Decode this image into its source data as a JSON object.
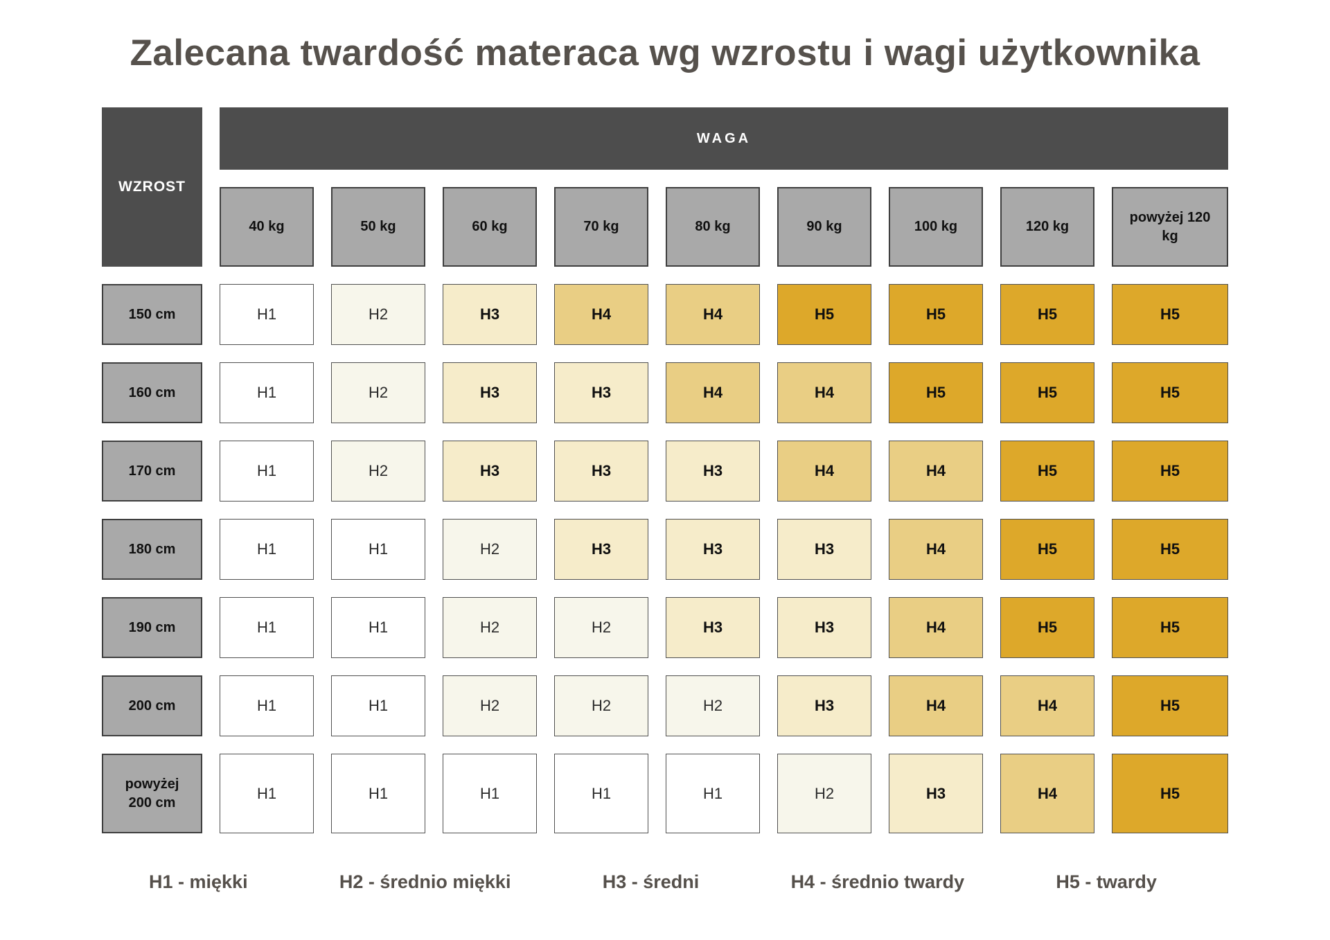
{
  "title": "Zalecana twardość materaca wg wzrostu i wagi użytkownika",
  "table": {
    "corner_label": "WZROST",
    "weight_header": "WAGA",
    "weight_columns": [
      "40 kg",
      "50 kg",
      "60 kg",
      "70 kg",
      "80 kg",
      "90 kg",
      "100 kg",
      "120 kg",
      "powyżej 120 kg"
    ],
    "rows": [
      {
        "height": "150 cm",
        "cells": [
          "H1",
          "H2",
          "H3",
          "H4",
          "H4",
          "H5",
          "H5",
          "H5",
          "H5"
        ]
      },
      {
        "height": "160 cm",
        "cells": [
          "H1",
          "H2",
          "H3",
          "H3",
          "H4",
          "H4",
          "H5",
          "H5",
          "H5"
        ]
      },
      {
        "height": "170 cm",
        "cells": [
          "H1",
          "H2",
          "H3",
          "H3",
          "H3",
          "H4",
          "H4",
          "H5",
          "H5"
        ]
      },
      {
        "height": "180 cm",
        "cells": [
          "H1",
          "H1",
          "H2",
          "H3",
          "H3",
          "H3",
          "H4",
          "H5",
          "H5"
        ]
      },
      {
        "height": "190 cm",
        "cells": [
          "H1",
          "H1",
          "H2",
          "H2",
          "H3",
          "H3",
          "H4",
          "H5",
          "H5"
        ]
      },
      {
        "height": "200 cm",
        "cells": [
          "H1",
          "H1",
          "H2",
          "H2",
          "H2",
          "H3",
          "H4",
          "H4",
          "H5"
        ]
      },
      {
        "height": "powyżej 200 cm",
        "cells": [
          "H1",
          "H1",
          "H1",
          "H1",
          "H1",
          "H2",
          "H3",
          "H4",
          "H5"
        ]
      }
    ],
    "level_styles": {
      "H1": {
        "bg": "#ffffff",
        "bold": false,
        "text": "#2b2b2b"
      },
      "H2": {
        "bg": "#f7f6eb",
        "bold": false,
        "text": "#2b2b2b"
      },
      "H3": {
        "bg": "#f6ecca",
        "bold": true,
        "text": "#0f0f0f"
      },
      "H4": {
        "bg": "#e9ce84",
        "bold": true,
        "text": "#0f0f0f"
      },
      "H5": {
        "bg": "#dda82a",
        "bold": true,
        "text": "#0f0f0f"
      }
    },
    "colors": {
      "header_dark": "#4d4d4d",
      "header_gray": "#a9a9a9",
      "border_dark": "#3e3e3e",
      "title_text": "#56514c"
    }
  },
  "legend": {
    "items": [
      "H1 - miękki",
      "H2 - średnio miękki",
      "H3 - średni",
      "H4 - średnio twardy",
      "H5 - twardy"
    ]
  },
  "chart_data": {
    "type": "heatmap",
    "title": "Zalecana twardość materaca wg wzrostu i wagi użytkownika",
    "xlabel": "WAGA",
    "ylabel": "WZROST",
    "x_categories": [
      "40 kg",
      "50 kg",
      "60 kg",
      "70 kg",
      "80 kg",
      "90 kg",
      "100 kg",
      "120 kg",
      "powyżej 120 kg"
    ],
    "y_categories": [
      "150 cm",
      "160 cm",
      "170 cm",
      "180 cm",
      "190 cm",
      "200 cm",
      "powyżej 200 cm"
    ],
    "values": [
      [
        "H1",
        "H2",
        "H3",
        "H4",
        "H4",
        "H5",
        "H5",
        "H5",
        "H5"
      ],
      [
        "H1",
        "H2",
        "H3",
        "H3",
        "H4",
        "H4",
        "H5",
        "H5",
        "H5"
      ],
      [
        "H1",
        "H2",
        "H3",
        "H3",
        "H3",
        "H4",
        "H4",
        "H5",
        "H5"
      ],
      [
        "H1",
        "H1",
        "H2",
        "H3",
        "H3",
        "H3",
        "H4",
        "H5",
        "H5"
      ],
      [
        "H1",
        "H1",
        "H2",
        "H2",
        "H3",
        "H3",
        "H4",
        "H5",
        "H5"
      ],
      [
        "H1",
        "H1",
        "H2",
        "H2",
        "H2",
        "H3",
        "H4",
        "H4",
        "H5"
      ],
      [
        "H1",
        "H1",
        "H1",
        "H1",
        "H1",
        "H2",
        "H3",
        "H4",
        "H5"
      ]
    ],
    "legend_entries": [
      "H1 - miękki",
      "H2 - średnio miękki",
      "H3 - średni",
      "H4 - średnio twardy",
      "H5 - twardy"
    ],
    "value_colors": {
      "H1": "#ffffff",
      "H2": "#f7f6eb",
      "H3": "#f6ecca",
      "H4": "#e9ce84",
      "H5": "#dda82a"
    },
    "legend_position": "bottom",
    "grid": false
  }
}
